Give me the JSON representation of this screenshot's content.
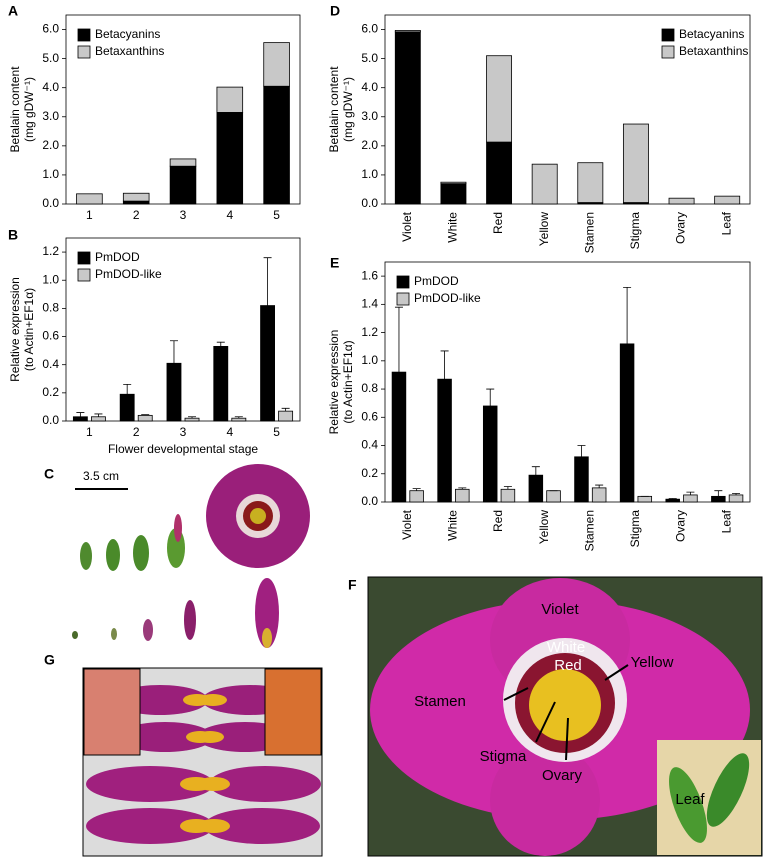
{
  "chart_data": [
    {
      "type": "bar",
      "stacked": true,
      "panel": "A",
      "ylabel": [
        "Betalain content",
        "(mg gDW⁻¹)"
      ],
      "categories": [
        "1",
        "2",
        "3",
        "4",
        "5"
      ],
      "series": [
        {
          "name": "Betacyanins",
          "color": "#000000",
          "values": [
            0,
            0.1,
            1.3,
            3.15,
            4.05
          ]
        },
        {
          "name": "Betaxanthins",
          "color": "#c8c8c8",
          "values": [
            0.35,
            0.27,
            0.25,
            0.87,
            1.5
          ]
        }
      ],
      "ylim": [
        0,
        6.5
      ],
      "yticks": [
        {
          "value": 0,
          "label": "0.0"
        },
        {
          "value": 1,
          "label": "1.0"
        },
        {
          "value": 2,
          "label": "2.0"
        },
        {
          "value": 3,
          "label": "3.0"
        },
        {
          "value": 4,
          "label": "4.0"
        },
        {
          "value": 5,
          "label": "5.0"
        },
        {
          "value": 6,
          "label": "6.0"
        }
      ],
      "legend": "upper left"
    },
    {
      "type": "bar",
      "stacked": false,
      "panel": "B",
      "ylabel": [
        "Relative expression",
        "(to Actin+EF1α)"
      ],
      "xlabel": "Flower developmental stage",
      "categories": [
        "1",
        "2",
        "3",
        "4",
        "5"
      ],
      "series": [
        {
          "name": "PmDOD",
          "color": "#000000",
          "values": [
            0.03,
            0.19,
            0.41,
            0.53,
            0.82
          ],
          "errors": [
            0.03,
            0.07,
            0.16,
            0.03,
            0.34
          ]
        },
        {
          "name": "PmDOD-like",
          "color": "#c8c8c8",
          "values": [
            0.03,
            0.04,
            0.02,
            0.02,
            0.07
          ],
          "errors": [
            0.02,
            0.005,
            0.01,
            0.01,
            0.02
          ]
        }
      ],
      "ylim": [
        0,
        1.3
      ],
      "yticks": [
        {
          "value": 0,
          "label": "0.0"
        },
        0.2,
        0.4,
        0.6,
        0.8,
        {
          "value": 1,
          "label": "1.0"
        },
        1.2
      ],
      "legend": "upper left"
    },
    {
      "type": "bar",
      "stacked": true,
      "panel": "D",
      "ylabel": [
        "Betalain content",
        "(mg gDW⁻¹)"
      ],
      "categories": [
        "Violet",
        "White",
        "Red",
        "Yellow",
        "Stamen",
        "Stigma",
        "Ovary",
        "Leaf"
      ],
      "series": [
        {
          "name": "Betacyanins",
          "color": "#000000",
          "values": [
            5.92,
            0.7,
            2.13,
            0,
            0.05,
            0.05,
            0,
            0
          ]
        },
        {
          "name": "Betaxanthins",
          "color": "#c8c8c8",
          "values": [
            0.05,
            0.05,
            2.97,
            1.37,
            1.37,
            2.7,
            0.2,
            0.27
          ]
        }
      ],
      "ylim": [
        0,
        6.5
      ],
      "yticks": [
        {
          "value": 0,
          "label": "0.0"
        },
        {
          "value": 1,
          "label": "1.0"
        },
        {
          "value": 2,
          "label": "2.0"
        },
        {
          "value": 3,
          "label": "3.0"
        },
        {
          "value": 4,
          "label": "4.0"
        },
        {
          "value": 5,
          "label": "5.0"
        },
        {
          "value": 6,
          "label": "6.0"
        }
      ],
      "legend": "upper right"
    },
    {
      "type": "bar",
      "stacked": false,
      "panel": "E",
      "ylabel": [
        "Relative expression",
        "(to Actin+EF1α)"
      ],
      "categories": [
        "Violet",
        "White",
        "Red",
        "Yellow",
        "Stamen",
        "Stigma",
        "Ovary",
        "Leaf"
      ],
      "series": [
        {
          "name": "PmDOD",
          "color": "#000000",
          "values": [
            0.92,
            0.87,
            0.68,
            0.19,
            0.32,
            1.12,
            0.02,
            0.04
          ],
          "errors": [
            0.46,
            0.2,
            0.12,
            0.06,
            0.08,
            0.4,
            0.005,
            0.04
          ]
        },
        {
          "name": "PmDOD-like",
          "color": "#c8c8c8",
          "values": [
            0.08,
            0.09,
            0.09,
            0.08,
            0.1,
            0.04,
            0.05,
            0.05
          ],
          "errors": [
            0.015,
            0.01,
            0.02,
            0,
            0.02,
            0,
            0.02,
            0.01
          ]
        }
      ],
      "ylim": [
        0,
        1.7
      ],
      "yticks": [
        {
          "value": 0,
          "label": "0.0"
        },
        0.2,
        0.4,
        0.6,
        0.8,
        {
          "value": 1,
          "label": "1.0"
        },
        1.2,
        1.4,
        1.6
      ],
      "legend": "upper left"
    }
  ],
  "photos": [
    {
      "panel": "C",
      "scale_bar": "3.5 cm"
    },
    {
      "panel": "F",
      "labels": [
        "Violet",
        "White",
        "Red",
        "Yellow",
        "Stamen",
        "Stigma",
        "Ovary",
        "Leaf"
      ]
    },
    {
      "panel": "G"
    }
  ]
}
